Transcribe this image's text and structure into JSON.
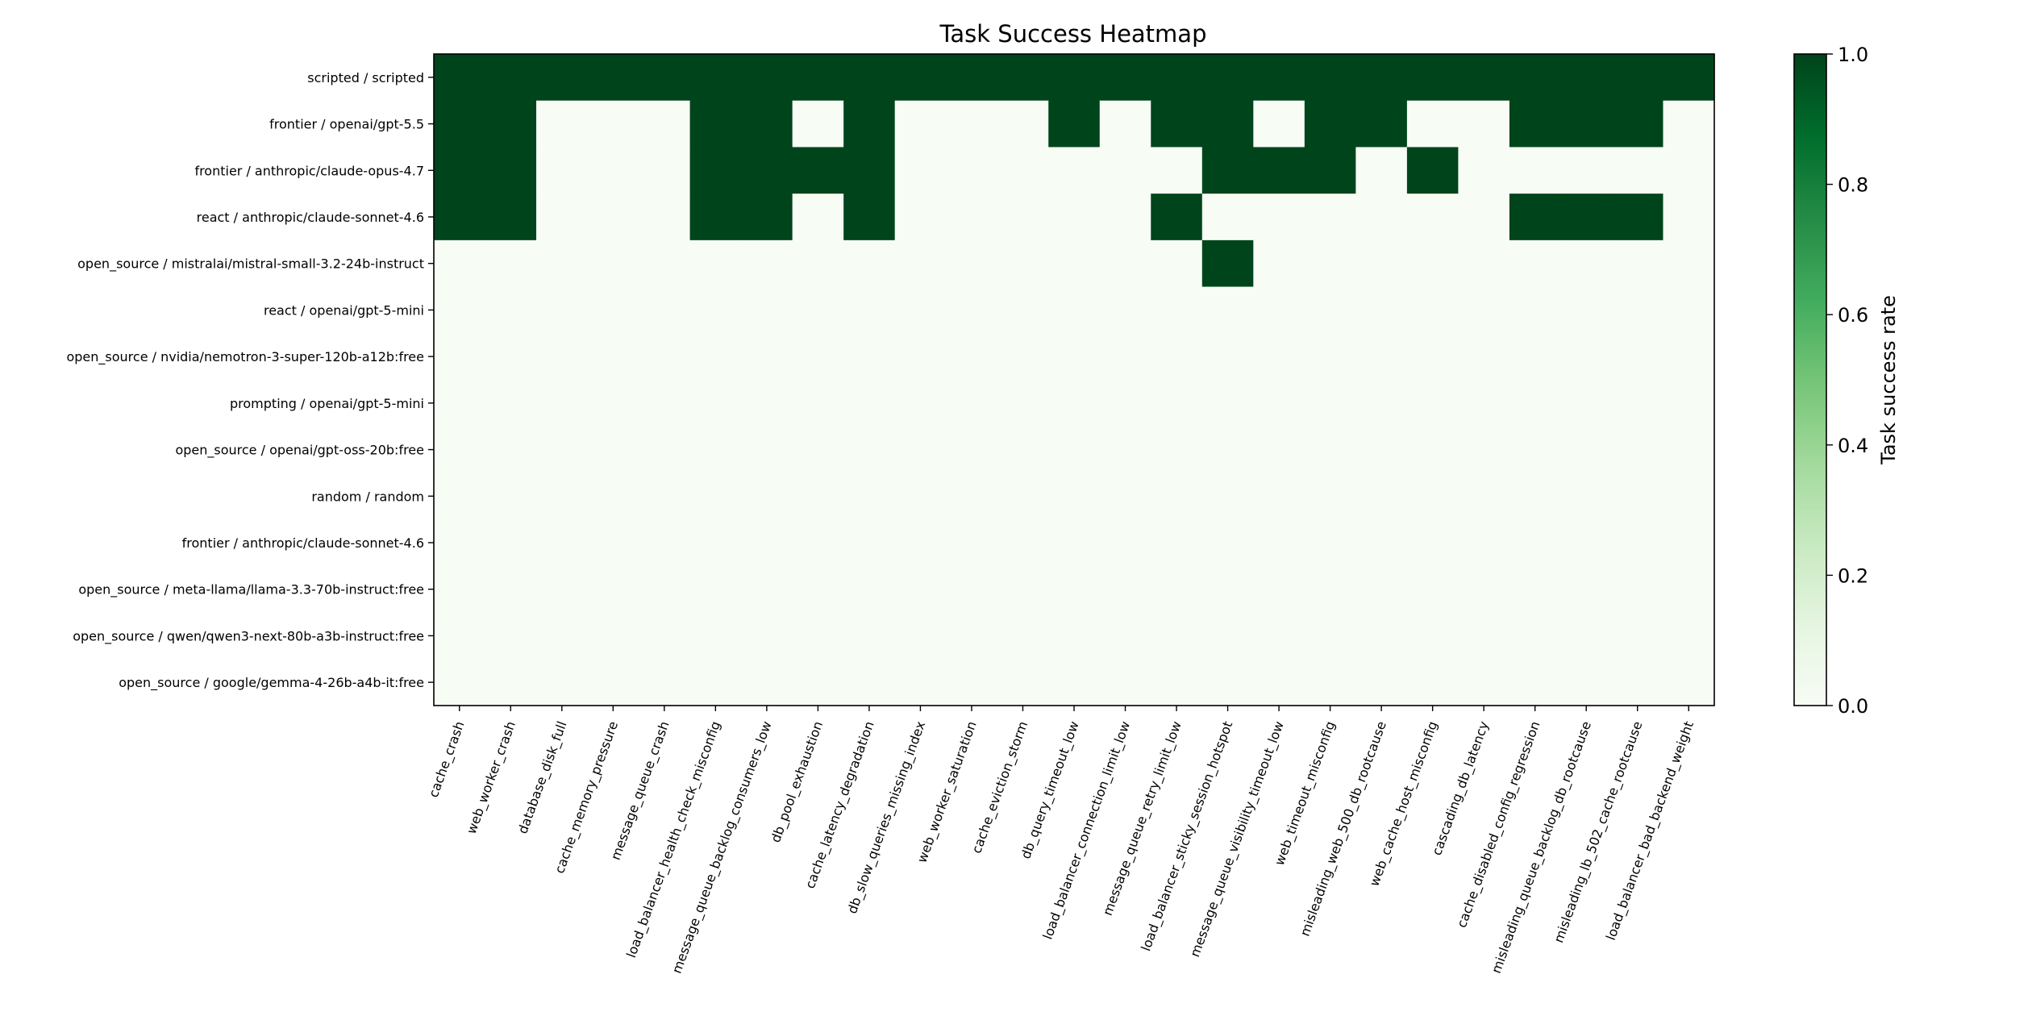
{
  "chart_data": {
    "type": "heatmap",
    "title": "Task Success Heatmap",
    "colorbar_label": "Task success rate",
    "colorbar_ticks": [
      "0.0",
      "0.2",
      "0.4",
      "0.6",
      "0.8",
      "1.0"
    ],
    "value_range": [
      0,
      1
    ],
    "colors": {
      "low": "#f7fcf5",
      "high": "#00441b",
      "colormap": "Greens"
    },
    "rows": [
      "scripted / scripted",
      "frontier / openai/gpt-5.5",
      "frontier / anthropic/claude-opus-4.7",
      "react / anthropic/claude-sonnet-4.6",
      "open_source / mistralai/mistral-small-3.2-24b-instruct",
      "react / openai/gpt-5-mini",
      "open_source / nvidia/nemotron-3-super-120b-a12b:free",
      "prompting / openai/gpt-5-mini",
      "open_source / openai/gpt-oss-20b:free",
      "random / random",
      "frontier / anthropic/claude-sonnet-4.6",
      "open_source / meta-llama/llama-3.3-70b-instruct:free",
      "open_source / qwen/qwen3-next-80b-a3b-instruct:free",
      "open_source / google/gemma-4-26b-a4b-it:free"
    ],
    "columns": [
      "cache_crash",
      "web_worker_crash",
      "database_disk_full",
      "cache_memory_pressure",
      "message_queue_crash",
      "load_balancer_health_check_misconfig",
      "message_queue_backlog_consumers_low",
      "db_pool_exhaustion",
      "cache_latency_degradation",
      "db_slow_queries_missing_index",
      "web_worker_saturation",
      "cache_eviction_storm",
      "db_query_timeout_low",
      "load_balancer_connection_limit_low",
      "message_queue_retry_limit_low",
      "load_balancer_sticky_session_hotspot",
      "message_queue_visibility_timeout_low",
      "web_timeout_misconfig",
      "misleading_web_500_db_rootcause",
      "web_cache_host_misconfig",
      "cascading_db_latency",
      "cache_disabled_config_regression",
      "misleading_queue_backlog_db_rootcause",
      "misleading_lb_502_cache_rootcause",
      "load_balancer_bad_backend_weight"
    ],
    "values": [
      [
        1,
        1,
        1,
        1,
        1,
        1,
        1,
        1,
        1,
        1,
        1,
        1,
        1,
        1,
        1,
        1,
        1,
        1,
        1,
        1,
        1,
        1,
        1,
        1,
        1
      ],
      [
        1,
        1,
        0,
        0,
        0,
        1,
        1,
        0,
        1,
        0,
        0,
        0,
        1,
        0,
        1,
        1,
        0,
        1,
        1,
        0,
        0,
        1,
        1,
        1,
        0
      ],
      [
        1,
        1,
        0,
        0,
        0,
        1,
        1,
        1,
        1,
        0,
        0,
        0,
        0,
        0,
        0,
        1,
        1,
        1,
        0,
        1,
        0,
        0,
        0,
        0,
        0
      ],
      [
        1,
        1,
        0,
        0,
        0,
        1,
        1,
        0,
        1,
        0,
        0,
        0,
        0,
        0,
        1,
        0,
        0,
        0,
        0,
        0,
        0,
        1,
        1,
        1,
        0
      ],
      [
        0,
        0,
        0,
        0,
        0,
        0,
        0,
        0,
        0,
        0,
        0,
        0,
        0,
        0,
        0,
        1,
        0,
        0,
        0,
        0,
        0,
        0,
        0,
        0,
        0
      ],
      [
        0,
        0,
        0,
        0,
        0,
        0,
        0,
        0,
        0,
        0,
        0,
        0,
        0,
        0,
        0,
        0,
        0,
        0,
        0,
        0,
        0,
        0,
        0,
        0,
        0
      ],
      [
        0,
        0,
        0,
        0,
        0,
        0,
        0,
        0,
        0,
        0,
        0,
        0,
        0,
        0,
        0,
        0,
        0,
        0,
        0,
        0,
        0,
        0,
        0,
        0,
        0
      ],
      [
        0,
        0,
        0,
        0,
        0,
        0,
        0,
        0,
        0,
        0,
        0,
        0,
        0,
        0,
        0,
        0,
        0,
        0,
        0,
        0,
        0,
        0,
        0,
        0,
        0
      ],
      [
        0,
        0,
        0,
        0,
        0,
        0,
        0,
        0,
        0,
        0,
        0,
        0,
        0,
        0,
        0,
        0,
        0,
        0,
        0,
        0,
        0,
        0,
        0,
        0,
        0
      ],
      [
        0,
        0,
        0,
        0,
        0,
        0,
        0,
        0,
        0,
        0,
        0,
        0,
        0,
        0,
        0,
        0,
        0,
        0,
        0,
        0,
        0,
        0,
        0,
        0,
        0
      ],
      [
        0,
        0,
        0,
        0,
        0,
        0,
        0,
        0,
        0,
        0,
        0,
        0,
        0,
        0,
        0,
        0,
        0,
        0,
        0,
        0,
        0,
        0,
        0,
        0,
        0
      ],
      [
        0,
        0,
        0,
        0,
        0,
        0,
        0,
        0,
        0,
        0,
        0,
        0,
        0,
        0,
        0,
        0,
        0,
        0,
        0,
        0,
        0,
        0,
        0,
        0,
        0
      ],
      [
        0,
        0,
        0,
        0,
        0,
        0,
        0,
        0,
        0,
        0,
        0,
        0,
        0,
        0,
        0,
        0,
        0,
        0,
        0,
        0,
        0,
        0,
        0,
        0,
        0
      ],
      [
        0,
        0,
        0,
        0,
        0,
        0,
        0,
        0,
        0,
        0,
        0,
        0,
        0,
        0,
        0,
        0,
        0,
        0,
        0,
        0,
        0,
        0,
        0,
        0,
        0
      ]
    ]
  }
}
